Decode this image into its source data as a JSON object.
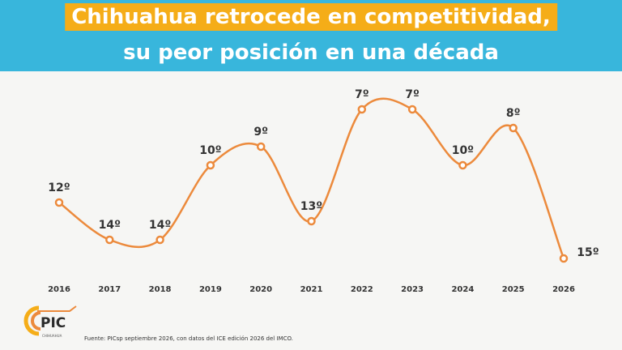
{
  "header": {
    "title_line_1": "Chihuahua retrocede en competitividad,",
    "title_line_2": "su peor posición en una década"
  },
  "colors": {
    "header_bg": "#38b6dc",
    "title_highlight": "#f5ad18",
    "line": "#ec8a3c",
    "text": "#333333"
  },
  "chart_data": {
    "type": "line",
    "title": "",
    "xlabel": "",
    "ylabel": "",
    "y_inverted": true,
    "ylim": [
      16,
      6
    ],
    "grid": false,
    "x": [
      "2016",
      "2017",
      "2018",
      "2019",
      "2020",
      "2021",
      "2022",
      "2023",
      "2024",
      "2025",
      "2026"
    ],
    "values": [
      12,
      14,
      14,
      10,
      9,
      13,
      7,
      7,
      10,
      8,
      15
    ],
    "labels": [
      "12º",
      "14º",
      "14º",
      "10º",
      "9º",
      "13º",
      "7º",
      "7º",
      "10º",
      "8º",
      "15º"
    ]
  },
  "footer": {
    "source": "Fuente: PICsp septiembre 2026, con datos del ICE edición 2026 del IMCO.",
    "logo_text": "PIC",
    "logo_subtext": "CHIHUAHUA"
  }
}
